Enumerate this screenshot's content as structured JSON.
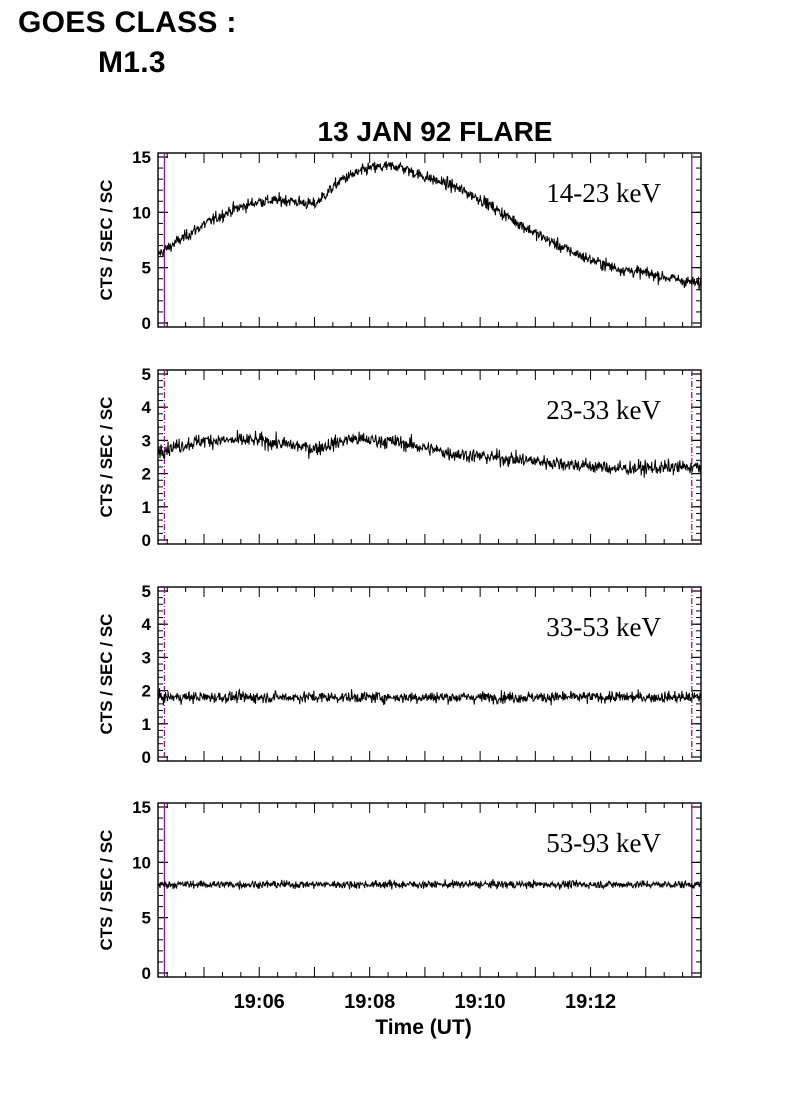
{
  "header": {
    "goes_label": "GOES CLASS :",
    "goes_class": "M1.3"
  },
  "figure_title": "13 JAN 92 FLARE",
  "colors": {
    "data": "#000000",
    "marker": "#8b1a8b",
    "axes": "#000000"
  },
  "chart_data": [
    {
      "type": "line",
      "band_label": "14-23 keV",
      "ylabel": "CTS / SEC / SC",
      "ylim": [
        0,
        15
      ],
      "yticks": [
        "0",
        "5",
        "10",
        "15"
      ],
      "xlim": [
        "19:04:10",
        "19:14:00"
      ],
      "xticks": [],
      "xlabel": "",
      "x": [
        "19:04:10",
        "19:04:30",
        "19:05:00",
        "19:05:30",
        "19:06:00",
        "19:06:30",
        "19:07:00",
        "19:07:30",
        "19:08:00",
        "19:08:30",
        "19:09:00",
        "19:09:30",
        "19:10:00",
        "19:10:30",
        "19:11:00",
        "19:11:30",
        "19:12:00",
        "19:12:30",
        "19:13:00",
        "19:13:30",
        "19:14:00"
      ],
      "y": [
        6.2,
        7.3,
        8.9,
        10.2,
        11.0,
        11.1,
        10.7,
        13.0,
        14.0,
        14.2,
        13.2,
        12.4,
        11.2,
        9.6,
        8.1,
        6.8,
        5.7,
        4.9,
        4.5,
        4.0,
        3.5
      ],
      "noise": 0.7
    },
    {
      "type": "line",
      "band_label": "23-33 keV",
      "ylabel": "CTS / SEC / SC",
      "ylim": [
        0,
        5
      ],
      "yticks": [
        "0",
        "1",
        "2",
        "3",
        "4",
        "5"
      ],
      "xlim": [
        "19:04:10",
        "19:14:00"
      ],
      "xticks": [],
      "xlabel": "",
      "x": [
        "19:04:10",
        "19:05:00",
        "19:06:00",
        "19:07:00",
        "19:07:40",
        "19:08:30",
        "19:09:30",
        "19:10:30",
        "19:11:30",
        "19:12:30",
        "19:14:00"
      ],
      "y": [
        2.7,
        3.0,
        3.0,
        2.75,
        3.05,
        2.95,
        2.6,
        2.45,
        2.3,
        2.15,
        2.2
      ],
      "noise": 0.28
    },
    {
      "type": "line",
      "band_label": "33-53 keV",
      "ylabel": "CTS / SEC / SC",
      "ylim": [
        0,
        5
      ],
      "yticks": [
        "0",
        "1",
        "2",
        "3",
        "4",
        "5"
      ],
      "xlim": [
        "19:04:10",
        "19:14:00"
      ],
      "xticks": [],
      "xlabel": "",
      "x": [
        "19:04:10",
        "19:14:00"
      ],
      "y": [
        1.8,
        1.8
      ],
      "noise": 0.22
    },
    {
      "type": "line",
      "band_label": "53-93 keV",
      "ylabel": "CTS / SEC / SC",
      "ylim": [
        0,
        15
      ],
      "yticks": [
        "0",
        "5",
        "10",
        "15"
      ],
      "xlim": [
        "19:04:10",
        "19:14:00"
      ],
      "xticks": [
        "19:06",
        "19:08",
        "19:10",
        "19:12"
      ],
      "xlabel": "Time (UT)",
      "x": [
        "19:04:10",
        "19:14:00"
      ],
      "y": [
        8.0,
        8.0
      ],
      "noise": 0.45
    }
  ],
  "markers": {
    "times": [
      "19:04:17",
      "19:13:50"
    ]
  }
}
